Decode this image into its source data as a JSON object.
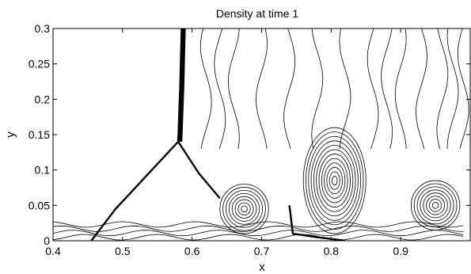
{
  "chart_data": {
    "type": "contour",
    "title": "Density at time 1",
    "xlabel": "x",
    "ylabel": "y",
    "xlim": [
      0.4,
      1.0
    ],
    "ylim": [
      0,
      0.3
    ],
    "xticks": [
      "0.4",
      "0.5",
      "0.6",
      "0.7",
      "0.8",
      "0.9"
    ],
    "yticks": [
      "0",
      "0.05",
      "0.1",
      "0.15",
      "0.2",
      "0.25",
      "0.3"
    ],
    "xtick_values": [
      0.4,
      0.5,
      0.6,
      0.7,
      0.8,
      0.9
    ],
    "ytick_values": [
      0,
      0.05,
      0.1,
      0.15,
      0.2,
      0.25,
      0.3
    ],
    "features": {
      "triple_point": [
        0.58,
        0.14
      ],
      "main_shock": [
        [
          0.585,
          0.3
        ],
        [
          0.58,
          0.14
        ]
      ],
      "incident_shock": [
        [
          0.58,
          0.14
        ],
        [
          0.49,
          0.045
        ],
        [
          0.455,
          0.0
        ]
      ],
      "reflected_shock": [
        [
          0.58,
          0.14
        ],
        [
          0.61,
          0.095
        ],
        [
          0.64,
          0.06
        ]
      ],
      "vortex_centers": [
        [
          0.675,
          0.045
        ],
        [
          0.805,
          0.085
        ],
        [
          0.95,
          0.05
        ]
      ],
      "slip_line": [
        [
          0.74,
          0.05
        ],
        [
          0.745,
          0.01
        ],
        [
          0.78,
          0.005
        ],
        [
          0.82,
          0.0
        ]
      ]
    },
    "grid": false
  }
}
